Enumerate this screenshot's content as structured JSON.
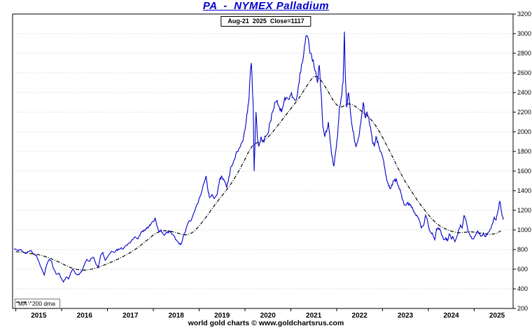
{
  "footer": {
    "text": "world gold charts © www.goldchartsrus.com"
  },
  "colors": {
    "price_line": "#0000cc",
    "ma_line": "#000000",
    "grid": "#c2c2c2",
    "frame": "#000000",
    "title_text": "#0000cc",
    "background": "#ffffff"
  },
  "noise": {
    "seed": 11,
    "amplitude": 0.013,
    "subdivisions": 3
  },
  "chart_data": {
    "type": "line",
    "title": "PA  -  NYMEX Palladium",
    "subtitle": "Aug-21  2025  Close=1117",
    "xlabel": "",
    "ylabel": "",
    "xlim": [
      2014.93,
      2025.85
    ],
    "ylim": [
      200,
      3200
    ],
    "y_tick_step": 200,
    "x_ticks": [
      2015,
      2016,
      2017,
      2018,
      2019,
      2020,
      2021,
      2022,
      2023,
      2024,
      2025
    ],
    "grid": "dotted-horizontal",
    "legend_position": "bottom-left",
    "y_axis_side": "right",
    "close_value": 1117,
    "close_date": "Aug-21 2025",
    "series": [
      {
        "name": "PA",
        "color": "#0000cc",
        "style": "solid",
        "x": [
          2014.96,
          2015.0,
          2015.06,
          2015.12,
          2015.17,
          2015.22,
          2015.28,
          2015.33,
          2015.38,
          2015.45,
          2015.5,
          2015.55,
          2015.62,
          2015.67,
          2015.73,
          2015.78,
          2015.83,
          2015.88,
          2015.94,
          2016.0,
          2016.04,
          2016.1,
          2016.15,
          2016.2,
          2016.25,
          2016.3,
          2016.35,
          2016.4,
          2016.45,
          2016.5,
          2016.55,
          2016.6,
          2016.65,
          2016.7,
          2016.75,
          2016.8,
          2016.85,
          2016.9,
          2016.95,
          2017.0,
          2017.05,
          2017.1,
          2017.15,
          2017.2,
          2017.25,
          2017.3,
          2017.35,
          2017.4,
          2017.45,
          2017.5,
          2017.55,
          2017.6,
          2017.65,
          2017.7,
          2017.75,
          2017.8,
          2017.85,
          2017.9,
          2017.95,
          2018.0,
          2018.04,
          2018.08,
          2018.13,
          2018.17,
          2018.21,
          2018.25,
          2018.3,
          2018.35,
          2018.4,
          2018.45,
          2018.5,
          2018.55,
          2018.6,
          2018.65,
          2018.7,
          2018.75,
          2018.8,
          2018.85,
          2018.9,
          2018.95,
          2019.0,
          2019.05,
          2019.1,
          2019.15,
          2019.2,
          2019.23,
          2019.28,
          2019.33,
          2019.38,
          2019.42,
          2019.46,
          2019.5,
          2019.55,
          2019.6,
          2019.65,
          2019.7,
          2019.75,
          2019.8,
          2019.85,
          2019.9,
          2019.95,
          2020.0,
          2020.04,
          2020.08,
          2020.11,
          2020.14,
          2020.16,
          2020.18,
          2020.2,
          2020.22,
          2020.24,
          2020.27,
          2020.3,
          2020.35,
          2020.4,
          2020.45,
          2020.5,
          2020.55,
          2020.6,
          2020.65,
          2020.7,
          2020.75,
          2020.8,
          2020.85,
          2020.9,
          2020.95,
          2021.0,
          2021.05,
          2021.1,
          2021.15,
          2021.2,
          2021.25,
          2021.3,
          2021.34,
          2021.38,
          2021.42,
          2021.46,
          2021.5,
          2021.54,
          2021.58,
          2021.62,
          2021.66,
          2021.7,
          2021.74,
          2021.78,
          2021.82,
          2021.86,
          2021.9,
          2021.94,
          2021.98,
          2022.02,
          2022.06,
          2022.1,
          2022.14,
          2022.17,
          2022.19,
          2022.22,
          2022.26,
          2022.3,
          2022.34,
          2022.38,
          2022.42,
          2022.46,
          2022.5,
          2022.54,
          2022.58,
          2022.62,
          2022.66,
          2022.7,
          2022.74,
          2022.78,
          2022.82,
          2022.86,
          2022.9,
          2022.95,
          2023.0,
          2023.04,
          2023.08,
          2023.12,
          2023.16,
          2023.2,
          2023.25,
          2023.3,
          2023.35,
          2023.4,
          2023.45,
          2023.5,
          2023.55,
          2023.6,
          2023.65,
          2023.7,
          2023.75,
          2023.8,
          2023.85,
          2023.9,
          2023.94,
          2023.98,
          2024.02,
          2024.06,
          2024.1,
          2024.14,
          2024.18,
          2024.22,
          2024.26,
          2024.3,
          2024.34,
          2024.38,
          2024.42,
          2024.46,
          2024.5,
          2024.54,
          2024.58,
          2024.62,
          2024.66,
          2024.7,
          2024.74,
          2024.78,
          2024.82,
          2024.86,
          2024.9,
          2024.95,
          2025.0,
          2025.04,
          2025.08,
          2025.12,
          2025.16,
          2025.2,
          2025.24,
          2025.28,
          2025.32,
          2025.36,
          2025.4,
          2025.44,
          2025.48,
          2025.52,
          2025.56,
          2025.6,
          2025.62,
          2025.64
        ],
        "values": [
          810,
          800,
          790,
          800,
          770,
          760,
          780,
          790,
          760,
          740,
          680,
          620,
          540,
          640,
          700,
          680,
          600,
          550,
          560,
          500,
          470,
          520,
          500,
          570,
          600,
          560,
          540,
          560,
          590,
          650,
          700,
          680,
          710,
          720,
          650,
          620,
          740,
          770,
          690,
          720,
          760,
          780,
          770,
          800,
          800,
          820,
          810,
          840,
          860,
          870,
          900,
          930,
          910,
          940,
          980,
          1000,
          1010,
          1030,
          1060,
          1090,
          1120,
          1040,
          980,
          1000,
          960,
          950,
          970,
          990,
          960,
          940,
          900,
          870,
          850,
          930,
          980,
          1060,
          1090,
          1130,
          1190,
          1260,
          1320,
          1380,
          1470,
          1550,
          1380,
          1330,
          1360,
          1320,
          1350,
          1450,
          1530,
          1540,
          1500,
          1430,
          1540,
          1650,
          1700,
          1770,
          1800,
          1850,
          1900,
          2020,
          2180,
          2300,
          2550,
          2700,
          2480,
          2250,
          1600,
          1900,
          2200,
          1950,
          1850,
          1950,
          1900,
          1950,
          1980,
          2100,
          2200,
          2300,
          2320,
          2250,
          2200,
          2300,
          2350,
          2330,
          2380,
          2350,
          2320,
          2400,
          2600,
          2700,
          2880,
          2980,
          2950,
          2800,
          2750,
          2700,
          2620,
          2500,
          2680,
          2400,
          2050,
          1950,
          2000,
          2100,
          1900,
          1750,
          1650,
          1800,
          1950,
          2250,
          2350,
          2500,
          3020,
          2550,
          2250,
          2400,
          2200,
          2050,
          1950,
          1850,
          1900,
          2000,
          2150,
          2300,
          2150,
          2200,
          2150,
          2050,
          1900,
          1850,
          1950,
          1900,
          1800,
          1750,
          1650,
          1550,
          1480,
          1420,
          1460,
          1500,
          1520,
          1450,
          1380,
          1300,
          1250,
          1280,
          1250,
          1230,
          1180,
          1150,
          1100,
          1020,
          1050,
          1150,
          1100,
          1000,
          970,
          950,
          900,
          1010,
          1020,
          1000,
          940,
          900,
          920,
          890,
          960,
          910,
          930,
          880,
          930,
          1000,
          1050,
          1020,
          1150,
          1100,
          1000,
          960,
          910,
          920,
          960,
          990,
          960,
          940,
          970,
          930,
          950,
          980,
          1010,
          1060,
          1130,
          1100,
          1200,
          1290,
          1180,
          1140,
          1117
        ]
      },
      {
        "name": "MA - 200 dma",
        "color": "#000000",
        "style": "dashdot",
        "x_start": 2015.0,
        "x_step": 0.0833333,
        "values": [
          780,
          775,
          770,
          765,
          760,
          755,
          748,
          738,
          725,
          710,
          695,
          678,
          660,
          640,
          622,
          608,
          598,
          592,
          590,
          594,
          602,
          612,
          625,
          640,
          656,
          672,
          690,
          708,
          728,
          748,
          770,
          795,
          822,
          852,
          884,
          916,
          948,
          972,
          988,
          992,
          990,
          982,
          972,
          960,
          950,
          952,
          968,
          998,
          1040,
          1090,
          1140,
          1195,
          1250,
          1300,
          1350,
          1400,
          1450,
          1510,
          1575,
          1645,
          1720,
          1800,
          1860,
          1885,
          1900,
          1915,
          1945,
          1985,
          2035,
          2085,
          2135,
          2185,
          2235,
          2285,
          2335,
          2395,
          2455,
          2515,
          2565,
          2560,
          2520,
          2460,
          2395,
          2325,
          2275,
          2250,
          2265,
          2285,
          2280,
          2255,
          2225,
          2195,
          2165,
          2125,
          2075,
          2015,
          1945,
          1870,
          1795,
          1715,
          1635,
          1560,
          1490,
          1430,
          1370,
          1310,
          1255,
          1205,
          1155,
          1110,
          1072,
          1042,
          1020,
          1002,
          988,
          978,
          972,
          974,
          978,
          982,
          978,
          972,
          966,
          960,
          956,
          958,
          968,
          990
        ]
      }
    ]
  }
}
